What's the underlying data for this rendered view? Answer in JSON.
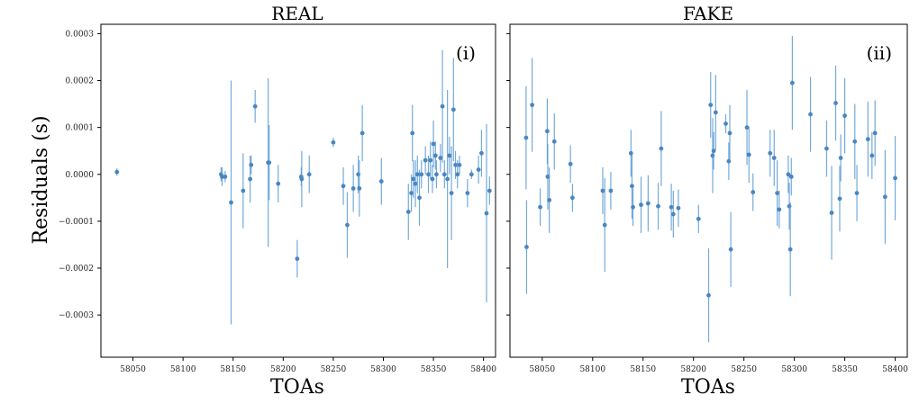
{
  "colors": {
    "series": "#5a9bd5",
    "point": "#4a86c0"
  },
  "figure": {
    "ylabel": "Residuals (s)"
  },
  "chart_data": [
    {
      "type": "scatter",
      "title": "REAL",
      "panel_tag": "(i)",
      "xlabel": "TOAs",
      "ylabel": "Residuals (s)",
      "xlim": [
        58018,
        58412
      ],
      "ylim": [
        -0.00039,
        0.00032
      ],
      "xticks": [
        58050,
        58100,
        58150,
        58200,
        58250,
        58300,
        58350,
        58400
      ],
      "yticks": [
        -0.0003,
        -0.0002,
        -0.0001,
        0.0,
        0.0001,
        0.0002,
        0.0003
      ],
      "ytick_labels": [
        "−0.0003",
        "−0.0002",
        "−0.0001",
        "0.0000",
        "0.0001",
        "0.0002",
        "0.0003"
      ],
      "grid": false,
      "points": [
        {
          "x": 58034,
          "y": 5e-06,
          "err": 8e-06
        },
        {
          "x": 58138,
          "y": 0.0,
          "err": 1.5e-05
        },
        {
          "x": 58139,
          "y": -5e-06,
          "err": 2e-05
        },
        {
          "x": 58142,
          "y": -5e-06,
          "err": 1.2e-05
        },
        {
          "x": 58148,
          "y": -6e-05,
          "err": 0.00026
        },
        {
          "x": 58160,
          "y": -3.5e-05,
          "err": 8e-05
        },
        {
          "x": 58167,
          "y": -1e-05,
          "err": 5e-05
        },
        {
          "x": 58168,
          "y": 2e-05,
          "err": 2e-05
        },
        {
          "x": 58172,
          "y": 0.000145,
          "err": 3.5e-05
        },
        {
          "x": 58185,
          "y": 2.5e-05,
          "err": 0.00018
        },
        {
          "x": 58186,
          "y": 2.5e-05,
          "err": 8e-05
        },
        {
          "x": 58195,
          "y": -2e-05,
          "err": 4e-05
        },
        {
          "x": 58214,
          "y": -0.00018,
          "err": 4e-05
        },
        {
          "x": 58218,
          "y": -5e-06,
          "err": 2e-05
        },
        {
          "x": 58218.5,
          "y": -1e-05,
          "err": 6e-05
        },
        {
          "x": 58226,
          "y": 0.0,
          "err": 4e-05
        },
        {
          "x": 58250,
          "y": 6.8e-05,
          "err": 1e-05
        },
        {
          "x": 58260,
          "y": -2.5e-05,
          "err": 4e-05
        },
        {
          "x": 58264,
          "y": -0.000108,
          "err": 7e-05
        },
        {
          "x": 58270,
          "y": -3e-05,
          "err": 5e-05
        },
        {
          "x": 58275,
          "y": 0.0,
          "err": 4e-05
        },
        {
          "x": 58276,
          "y": -3e-05,
          "err": 6e-05
        },
        {
          "x": 58279,
          "y": 8.8e-05,
          "err": 6e-05
        },
        {
          "x": 58298,
          "y": -1.5e-05,
          "err": 5e-05
        },
        {
          "x": 58325,
          "y": -8e-05,
          "err": 6e-05
        },
        {
          "x": 58328,
          "y": -4e-05,
          "err": 4e-05
        },
        {
          "x": 58329,
          "y": 8.8e-05,
          "err": 6e-05
        },
        {
          "x": 58330,
          "y": -1e-05,
          "err": 4e-05
        },
        {
          "x": 58332,
          "y": -2e-05,
          "err": 5e-05
        },
        {
          "x": 58334,
          "y": 0.0,
          "err": 4e-05
        },
        {
          "x": 58336,
          "y": -5e-05,
          "err": 6e-05
        },
        {
          "x": 58338,
          "y": 0.0,
          "err": 3e-05
        },
        {
          "x": 58342,
          "y": 3e-05,
          "err": 3e-05
        },
        {
          "x": 58345,
          "y": 0.0,
          "err": 4e-05
        },
        {
          "x": 58347,
          "y": 3e-05,
          "err": 4e-05
        },
        {
          "x": 58349,
          "y": -1e-05,
          "err": 3e-05
        },
        {
          "x": 58350,
          "y": 6.5e-05,
          "err": 5e-05
        },
        {
          "x": 58352,
          "y": 4e-05,
          "err": 3e-05
        },
        {
          "x": 58353,
          "y": 0.0,
          "err": 3e-05
        },
        {
          "x": 58357,
          "y": 3.5e-05,
          "err": 3e-05
        },
        {
          "x": 58359,
          "y": 0.000145,
          "err": 0.00012
        },
        {
          "x": 58361,
          "y": 0.0,
          "err": 3e-05
        },
        {
          "x": 58364,
          "y": -1e-05,
          "err": 0.00019
        },
        {
          "x": 58366,
          "y": 4e-05,
          "err": 4e-05
        },
        {
          "x": 58368,
          "y": -4e-05,
          "err": 0.0001
        },
        {
          "x": 58370,
          "y": 0.000138,
          "err": 0.00011
        },
        {
          "x": 58372,
          "y": 2e-05,
          "err": 3e-05
        },
        {
          "x": 58374,
          "y": 0.0,
          "err": 3e-05
        },
        {
          "x": 58376,
          "y": 2e-05,
          "err": 2e-05
        },
        {
          "x": 58384,
          "y": -4e-05,
          "err": 3e-05
        },
        {
          "x": 58388,
          "y": 0.0,
          "err": 1e-05
        },
        {
          "x": 58395,
          "y": 1e-05,
          "err": 3e-05
        },
        {
          "x": 58398,
          "y": 4.5e-05,
          "err": 5e-05
        },
        {
          "x": 58403,
          "y": -8.3e-05,
          "err": 0.00019
        },
        {
          "x": 58406,
          "y": -3.5e-05,
          "err": 3e-05
        }
      ]
    },
    {
      "type": "scatter",
      "title": "FAKE",
      "panel_tag": "(ii)",
      "xlabel": "TOAs",
      "ylabel": "",
      "xlim": [
        58018,
        58412
      ],
      "ylim": [
        -0.00039,
        0.00032
      ],
      "xticks": [
        58050,
        58100,
        58150,
        58200,
        58250,
        58300,
        58350,
        58400
      ],
      "yticks": [
        -0.0003,
        -0.0002,
        -0.0001,
        0.0,
        0.0001,
        0.0002,
        0.0003
      ],
      "ytick_labels": [],
      "grid": false,
      "points": [
        {
          "x": 58034,
          "y": 7.8e-05,
          "err": 0.00011
        },
        {
          "x": 58034.5,
          "y": -0.000155,
          "err": 0.0001
        },
        {
          "x": 58040,
          "y": 0.000148,
          "err": 0.0001
        },
        {
          "x": 58048,
          "y": -7e-05,
          "err": 4e-05
        },
        {
          "x": 58055,
          "y": 9.2e-05,
          "err": 7e-05
        },
        {
          "x": 58055.5,
          "y": -5e-06,
          "err": 7e-05
        },
        {
          "x": 58057,
          "y": -5.5e-05,
          "err": 7e-05
        },
        {
          "x": 58062,
          "y": 7e-05,
          "err": 6e-05
        },
        {
          "x": 58078,
          "y": 2.2e-05,
          "err": 4e-05
        },
        {
          "x": 58080,
          "y": -5e-05,
          "err": 3e-05
        },
        {
          "x": 58110,
          "y": -3.5e-05,
          "err": 5e-05
        },
        {
          "x": 58112,
          "y": -0.000108,
          "err": 0.0001
        },
        {
          "x": 58118,
          "y": -3.5e-05,
          "err": 4e-05
        },
        {
          "x": 58138,
          "y": 4.5e-05,
          "err": 5e-05
        },
        {
          "x": 58139,
          "y": -2.5e-05,
          "err": 7e-05
        },
        {
          "x": 58140,
          "y": -7e-05,
          "err": 4e-05
        },
        {
          "x": 58148,
          "y": -6.5e-05,
          "err": 6e-05
        },
        {
          "x": 58155,
          "y": -6.2e-05,
          "err": 6e-05
        },
        {
          "x": 58165,
          "y": -6.8e-05,
          "err": 5e-05
        },
        {
          "x": 58168,
          "y": 5.5e-05,
          "err": 8e-05
        },
        {
          "x": 58178,
          "y": -7e-05,
          "err": 5e-05
        },
        {
          "x": 58180,
          "y": -8.5e-05,
          "err": 5e-05
        },
        {
          "x": 58185,
          "y": -7.2e-05,
          "err": 4e-05
        },
        {
          "x": 58205,
          "y": -9.5e-05,
          "err": 3e-05
        },
        {
          "x": 58215,
          "y": -0.000258,
          "err": 0.0001
        },
        {
          "x": 58217,
          "y": 0.000148,
          "err": 7e-05
        },
        {
          "x": 58219,
          "y": 4e-05,
          "err": 8e-05
        },
        {
          "x": 58220,
          "y": 5e-05,
          "err": 4e-05
        },
        {
          "x": 58222,
          "y": 0.000132,
          "err": 8e-05
        },
        {
          "x": 58232,
          "y": 0.000108,
          "err": 2e-05
        },
        {
          "x": 58235,
          "y": 2.8e-05,
          "err": 4e-05
        },
        {
          "x": 58236,
          "y": 8.8e-05,
          "err": 6e-05
        },
        {
          "x": 58237,
          "y": -0.00016,
          "err": 8e-05
        },
        {
          "x": 58253,
          "y": 0.0001,
          "err": 8e-05
        },
        {
          "x": 58255,
          "y": 4.2e-05,
          "err": 6e-05
        },
        {
          "x": 58259,
          "y": -3.8e-05,
          "err": 4e-05
        },
        {
          "x": 58276,
          "y": 4.5e-05,
          "err": 5e-05
        },
        {
          "x": 58280,
          "y": 3.5e-05,
          "err": 6e-05
        },
        {
          "x": 58283,
          "y": -4e-05,
          "err": 7e-05
        },
        {
          "x": 58285,
          "y": -7.5e-05,
          "err": 4e-05
        },
        {
          "x": 58294,
          "y": 0.0,
          "err": 4e-05
        },
        {
          "x": 58295,
          "y": -6.8e-05,
          "err": 5e-05
        },
        {
          "x": 58296,
          "y": -0.00016,
          "err": 0.0001
        },
        {
          "x": 58297,
          "y": -5e-06,
          "err": 4e-05
        },
        {
          "x": 58298,
          "y": 0.000195,
          "err": 0.0001
        },
        {
          "x": 58316,
          "y": 0.000128,
          "err": 8e-05
        },
        {
          "x": 58332,
          "y": 5.5e-05,
          "err": 6e-05
        },
        {
          "x": 58337,
          "y": -8.2e-05,
          "err": 0.0001
        },
        {
          "x": 58341,
          "y": 0.000152,
          "err": 8e-05
        },
        {
          "x": 58345,
          "y": -5.2e-05,
          "err": 7e-05
        },
        {
          "x": 58346,
          "y": 3.5e-05,
          "err": 5e-05
        },
        {
          "x": 58350,
          "y": 0.000125,
          "err": 8e-05
        },
        {
          "x": 58360,
          "y": 7e-05,
          "err": 8e-05
        },
        {
          "x": 58362,
          "y": -4e-05,
          "err": 6e-05
        },
        {
          "x": 58373,
          "y": 7.5e-05,
          "err": 8e-05
        },
        {
          "x": 58377,
          "y": 4e-05,
          "err": 5e-05
        },
        {
          "x": 58380,
          "y": 8.8e-05,
          "err": 7e-05
        },
        {
          "x": 58390,
          "y": -4.8e-05,
          "err": 0.0001
        },
        {
          "x": 58400,
          "y": -8e-06,
          "err": 9e-05
        }
      ]
    }
  ]
}
